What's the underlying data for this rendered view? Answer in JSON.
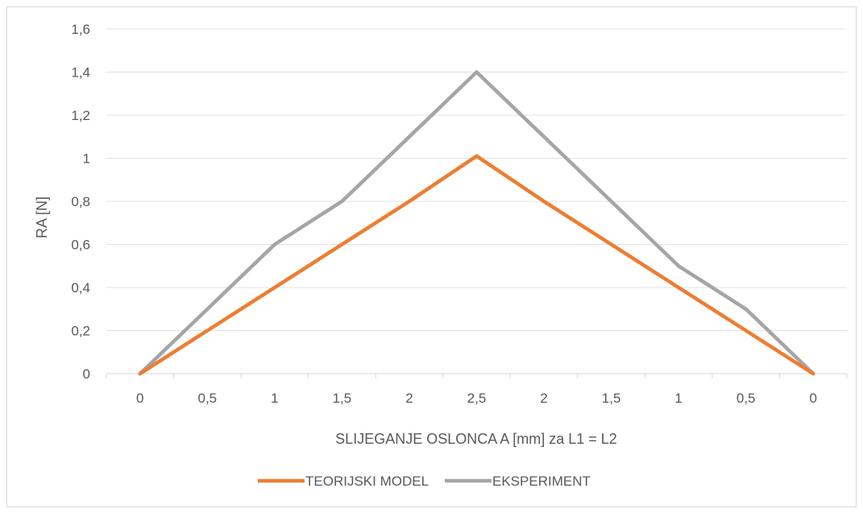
{
  "chart_data": {
    "type": "line",
    "title": "",
    "xlabel": "SLIJEGANJE OSLONCA A [mm] za L1 = L2",
    "ylabel": "RA [N]",
    "categories": [
      "0",
      "0,5",
      "1",
      "1,5",
      "2",
      "2,5",
      "2",
      "1,5",
      "1",
      "0,5",
      "0"
    ],
    "ylim": [
      0,
      1.6
    ],
    "yticks": [
      "0",
      "0,2",
      "0,4",
      "0,6",
      "0,8",
      "1",
      "1,2",
      "1,4",
      "1,6"
    ],
    "grid": true,
    "legend_position": "bottom",
    "series": [
      {
        "name": "TEORIJSKI MODEL",
        "color": "#ed7d31",
        "values": [
          0,
          0.2,
          0.4,
          0.6,
          0.8,
          1.01,
          0.8,
          0.6,
          0.4,
          0.2,
          0
        ]
      },
      {
        "name": "EKSPERIMENT",
        "color": "#a5a5a5",
        "values": [
          0,
          0.3,
          0.6,
          0.8,
          1.1,
          1.4,
          1.1,
          0.8,
          0.5,
          0.3,
          0
        ]
      }
    ]
  }
}
